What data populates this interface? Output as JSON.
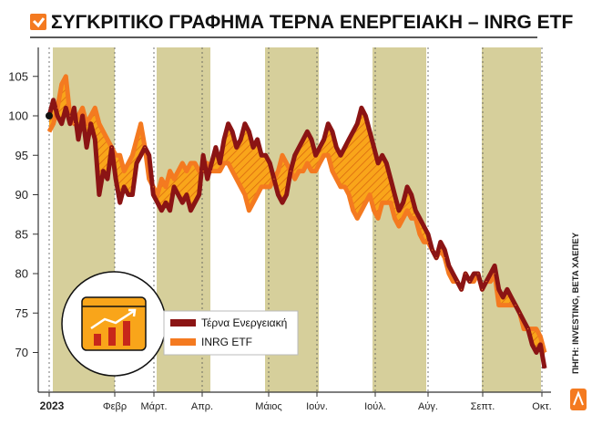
{
  "chart_data": {
    "type": "line",
    "title": "ΣΥΓΚΡΙΤΙΚΟ ΓΡΑΦΗΜΑ ΤΕΡΝΑ ΕΝΕΡΓΕΙΑΚΗ – INRG ETF",
    "xlabel": "",
    "ylabel": "",
    "ylim": [
      65,
      107
    ],
    "yticks": [
      70,
      75,
      80,
      85,
      90,
      95,
      100,
      105
    ],
    "month_labels": [
      "2023",
      "Φεβρ",
      "Μάρτ.",
      "Απρ.",
      "Μάιος",
      "Ιούν.",
      "Ιούλ.",
      "Αύγ.",
      "Σεπτ.",
      "Οκτ."
    ],
    "grid": "dotted vertical month lines, shaded alternate months",
    "series": [
      {
        "name": "Τέρνα Ενεργειακή",
        "color": "#8b1414",
        "values": [
          100,
          102,
          100,
          99,
          101,
          99,
          101,
          97,
          100,
          96,
          99,
          97,
          90,
          93,
          92,
          96,
          92,
          89,
          91,
          90,
          90,
          94,
          95,
          96,
          95,
          90,
          89,
          88,
          89,
          88,
          91,
          90,
          89,
          90,
          88,
          89,
          90,
          95,
          92,
          94,
          96,
          94,
          97,
          99,
          98,
          96,
          97,
          99,
          98,
          96,
          97,
          95,
          95,
          94,
          92,
          90,
          89,
          90,
          93,
          95,
          96,
          97,
          98,
          97,
          95,
          96,
          97,
          99,
          98,
          96,
          95,
          96,
          97,
          98,
          99,
          101,
          100,
          98,
          96,
          94,
          95,
          94,
          92,
          90,
          88,
          89,
          91,
          90,
          88,
          87,
          86,
          85,
          83,
          82,
          84,
          83,
          81,
          80,
          79,
          78,
          80,
          79,
          80,
          80,
          78,
          79,
          80,
          81,
          78,
          77,
          78,
          77,
          76,
          75,
          74,
          73,
          71,
          70,
          71,
          68
        ]
      },
      {
        "name": "INRG ETF",
        "color": "#f47a20",
        "values": [
          98,
          99,
          101,
          104,
          105,
          100,
          99,
          100,
          101,
          99,
          100,
          101,
          99,
          98,
          97,
          96,
          95,
          95,
          93,
          94,
          95,
          97,
          99,
          96,
          92,
          91,
          90,
          92,
          91,
          93,
          92,
          93,
          94,
          93,
          94,
          94,
          93,
          93,
          94,
          93,
          93,
          93,
          94,
          94,
          93,
          92,
          91,
          90,
          88,
          89,
          90,
          91,
          91,
          91,
          92,
          93,
          95,
          94,
          93,
          92,
          93,
          93,
          94,
          93,
          93,
          94,
          95,
          95,
          93,
          92,
          91,
          91,
          90,
          88,
          87,
          88,
          89,
          90,
          88,
          87,
          89,
          89,
          89,
          87,
          86,
          87,
          88,
          87,
          87,
          85,
          84,
          84,
          83,
          82,
          83,
          82,
          80,
          79,
          79,
          78,
          80,
          79,
          79,
          80,
          78,
          79,
          79,
          80,
          76,
          76,
          76,
          76,
          76,
          75,
          73,
          73,
          73,
          73,
          72,
          70
        ]
      }
    ]
  },
  "legend": {
    "items": [
      "Τέρνα Ενεργειακή",
      "INRG ETF"
    ]
  },
  "source": "ΠΗΓΗ: INVESTING, BETA ΧΑΕΠΕΥ"
}
